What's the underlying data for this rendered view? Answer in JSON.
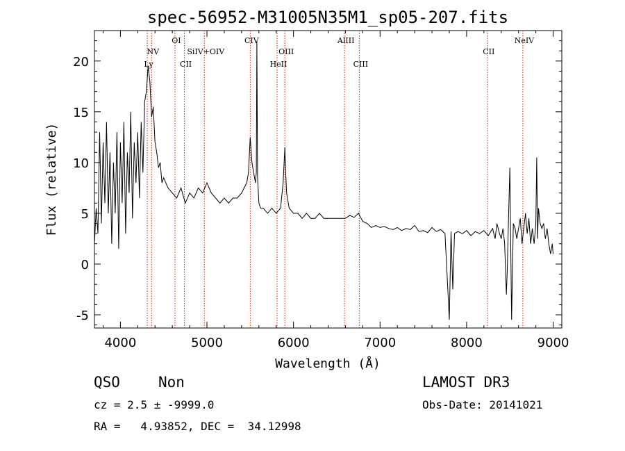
{
  "chart_data": {
    "type": "line",
    "title": "spec-56952-M31005N35M1_sp05-207.fits",
    "xlabel": "Wavelength (Å)",
    "ylabel": "Flux (relative)",
    "xlim": [
      3700,
      9100
    ],
    "ylim": [
      -6.3,
      23.0
    ],
    "x_ticks": [
      4000,
      5000,
      6000,
      7000,
      8000,
      9000
    ],
    "y_ticks": [
      -5,
      0,
      5,
      10,
      15,
      20
    ],
    "grid": false,
    "line_color": "#000000",
    "marker_color": "#cc2200",
    "series": [
      {
        "name": "spectrum",
        "x": [
          3700,
          3720,
          3740,
          3760,
          3780,
          3800,
          3820,
          3840,
          3860,
          3880,
          3900,
          3920,
          3940,
          3960,
          3980,
          4000,
          4020,
          4040,
          4060,
          4080,
          4100,
          4120,
          4140,
          4160,
          4180,
          4200,
          4220,
          4240,
          4260,
          4280,
          4300,
          4320,
          4340,
          4360,
          4380,
          4400,
          4420,
          4440,
          4460,
          4480,
          4500,
          4550,
          4600,
          4650,
          4700,
          4750,
          4800,
          4850,
          4900,
          4950,
          5000,
          5050,
          5100,
          5150,
          5200,
          5250,
          5300,
          5350,
          5400,
          5430,
          5460,
          5480,
          5500,
          5520,
          5540,
          5560,
          5570,
          5577,
          5585,
          5600,
          5620,
          5650,
          5700,
          5750,
          5800,
          5850,
          5880,
          5900,
          5910,
          5920,
          5950,
          6000,
          6050,
          6100,
          6150,
          6200,
          6250,
          6300,
          6350,
          6400,
          6450,
          6500,
          6550,
          6600,
          6650,
          6700,
          6750,
          6800,
          6850,
          6900,
          6950,
          7000,
          7050,
          7100,
          7150,
          7200,
          7250,
          7300,
          7350,
          7400,
          7450,
          7500,
          7550,
          7600,
          7650,
          7700,
          7750,
          7780,
          7800,
          7820,
          7840,
          7860,
          7900,
          7950,
          8000,
          8050,
          8100,
          8150,
          8200,
          8250,
          8300,
          8330,
          8350,
          8380,
          8400,
          8420,
          8440,
          8460,
          8470,
          8480,
          8500,
          8520,
          8540,
          8560,
          8580,
          8600,
          8620,
          8640,
          8660,
          8680,
          8700,
          8720,
          8740,
          8760,
          8780,
          8800,
          8810,
          8820,
          8830,
          8850,
          8870,
          8890,
          8910,
          8930,
          8950,
          8970,
          8990,
          9000
        ],
        "values": [
          2.0,
          5.5,
          3.0,
          13.0,
          4.0,
          12.0,
          6.0,
          14.0,
          5.0,
          11.0,
          2.0,
          10.0,
          5.0,
          13.0,
          1.5,
          12.0,
          6.0,
          14.0,
          3.0,
          11.0,
          7.0,
          15.0,
          4.5,
          12.0,
          8.0,
          13.0,
          6.5,
          14.0,
          9.0,
          16.0,
          17.0,
          19.5,
          18.0,
          14.5,
          15.5,
          12.0,
          11.0,
          9.5,
          10.0,
          8.0,
          8.5,
          7.5,
          7.0,
          6.5,
          7.5,
          6.0,
          7.0,
          6.5,
          7.5,
          7.0,
          8.0,
          7.0,
          6.5,
          6.0,
          6.5,
          6.0,
          6.5,
          6.5,
          7.0,
          7.5,
          8.0,
          9.0,
          12.5,
          10.0,
          9.0,
          8.0,
          9.0,
          22.0,
          8.5,
          6.0,
          5.5,
          5.5,
          5.0,
          5.5,
          5.0,
          5.5,
          8.0,
          11.5,
          9.0,
          7.0,
          5.5,
          5.0,
          5.0,
          4.5,
          5.0,
          4.5,
          4.5,
          5.0,
          4.5,
          4.5,
          4.5,
          4.5,
          4.5,
          4.5,
          4.8,
          4.6,
          5.0,
          4.2,
          4.0,
          3.6,
          3.8,
          3.6,
          3.7,
          3.5,
          3.4,
          3.6,
          3.3,
          3.5,
          3.4,
          3.8,
          3.2,
          3.3,
          3.1,
          3.6,
          3.2,
          3.4,
          3.0,
          -2.0,
          -5.5,
          3.2,
          -2.5,
          3.0,
          3.2,
          3.0,
          3.3,
          2.8,
          3.2,
          3.0,
          3.3,
          2.8,
          3.5,
          2.5,
          4.0,
          3.0,
          2.5,
          3.5,
          2.0,
          -3.0,
          -0.5,
          3.0,
          9.5,
          -5.5,
          4.0,
          3.5,
          2.5,
          3.5,
          4.5,
          2.0,
          3.5,
          5.0,
          3.0,
          4.5,
          2.0,
          3.5,
          2.0,
          4.0,
          10.5,
          2.5,
          5.5,
          4.0,
          3.5,
          4.0,
          2.5,
          3.5,
          2.0,
          1.0,
          2.0,
          1.0
        ]
      }
    ],
    "line_markers": [
      {
        "label": "Ly",
        "x": 4310,
        "row": 3
      },
      {
        "label": "NV",
        "x": 4360,
        "row": 2
      },
      {
        "label": "OI",
        "x": 4630,
        "row": 1
      },
      {
        "label": "CII",
        "x": 4740,
        "row": 3
      },
      {
        "label": "SiIV+OIV",
        "x": 4970,
        "row": 2
      },
      {
        "label": "CIV",
        "x": 5500,
        "row": 1
      },
      {
        "label": "HeII",
        "x": 5810,
        "row": 3
      },
      {
        "label": "OIII",
        "x": 5900,
        "row": 2
      },
      {
        "label": "AlIII",
        "x": 6590,
        "row": 1
      },
      {
        "label": "CIII",
        "x": 6760,
        "row": 3
      },
      {
        "label": "CII",
        "x": 8240,
        "row": 2
      },
      {
        "label": "NeIV",
        "x": 8650,
        "row": 1
      }
    ]
  },
  "info": {
    "object_class": "QSO",
    "subclass": "Non",
    "survey": "LAMOST DR3",
    "redshift": "cz = 2.5 ± -9999.0",
    "obs_date": "Obs-Date: 20141021",
    "coords": "RA =   4.93852, DEC =  34.12998"
  }
}
